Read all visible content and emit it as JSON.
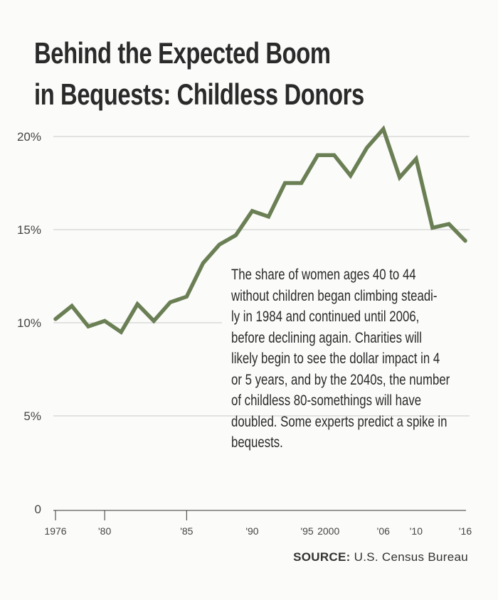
{
  "title_lines": [
    "Behind the Expected Boom",
    "in Bequests: Childless Donors"
  ],
  "annotation_lines": [
    "The share of women ages 40 to 44",
    "without children began climbing steadi-",
    "ly in 1984 and continued until 2006,",
    "before declining again. Charities will",
    "likely begin to see the dollar impact in 4",
    "or 5 years, and by the 2040s, the number",
    "of childless 80-somethings will have",
    "doubled. Some experts predict a spike in",
    "bequests."
  ],
  "source": {
    "label": "SOURCE:",
    "text": "U.S. Census Bureau"
  },
  "chart_data": {
    "type": "line",
    "title": "Behind the Expected Boom in Bequests: Childless Donors",
    "xlabel": "",
    "ylabel": "",
    "ylim": [
      0,
      20
    ],
    "yticks": [
      0,
      5,
      10,
      15,
      20
    ],
    "ytick_labels": [
      "0",
      "5%",
      "10%",
      "15%",
      "20%"
    ],
    "grid": true,
    "line_color": "#6b7f55",
    "x": [
      1976,
      1978,
      1979,
      1980,
      1981,
      1982,
      1983,
      1984,
      1985,
      1986,
      1987,
      1988,
      1990,
      1992,
      1994,
      1995,
      1998,
      2000,
      2002,
      2004,
      2006,
      2008,
      2010,
      2012,
      2014,
      2016
    ],
    "values": [
      10.2,
      10.9,
      9.8,
      10.1,
      9.5,
      11.0,
      10.1,
      11.1,
      11.4,
      13.2,
      14.2,
      14.7,
      16.0,
      15.7,
      17.5,
      17.5,
      19.0,
      19.0,
      17.9,
      19.4,
      20.4,
      17.8,
      18.8,
      15.1,
      15.3,
      14.4
    ],
    "xticks": [
      {
        "year": 1976,
        "label": "1976"
      },
      {
        "year": 1980,
        "label": "'80"
      },
      {
        "year": 1985,
        "label": "'85"
      },
      {
        "year": 1990,
        "label": "'90"
      },
      {
        "year": 1995,
        "label": "'95"
      },
      {
        "year": 2000,
        "label": "2000"
      },
      {
        "year": 2006,
        "label": "'06"
      },
      {
        "year": 2010,
        "label": "'10"
      },
      {
        "year": 2016,
        "label": "'16"
      }
    ]
  }
}
